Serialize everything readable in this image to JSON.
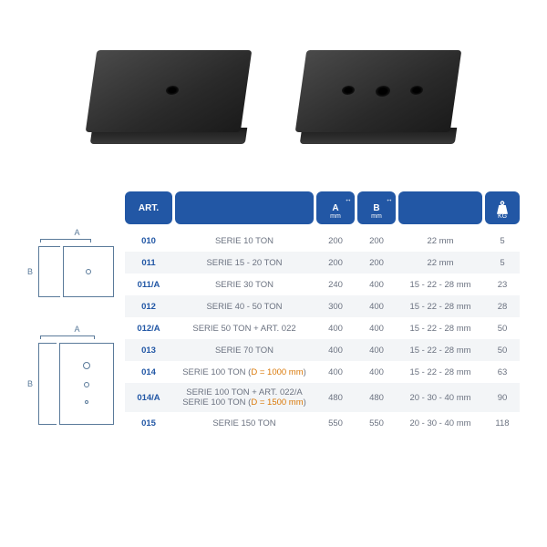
{
  "header": {
    "art": "ART.",
    "a": "A",
    "b": "B",
    "dim_unit": "mm",
    "kg": "KG"
  },
  "diagrams": {
    "label_a": "A",
    "label_b": "B"
  },
  "colors": {
    "header_bg": "#2257a5",
    "art_text": "#2257a5",
    "highlight": "#d97706",
    "body_text": "#6b7280",
    "row_alt": "#f3f5f7",
    "diagram_line": "#5a7a9a"
  },
  "rows": [
    {
      "art": "010",
      "desc": "SERIE 10 TON",
      "a": "200",
      "b": "200",
      "c": "22 mm",
      "kg": "5"
    },
    {
      "art": "011",
      "desc": "SERIE 15 - 20 TON",
      "a": "200",
      "b": "200",
      "c": "22 mm",
      "kg": "5"
    },
    {
      "art": "011/A",
      "desc": "SERIE 30 TON",
      "a": "240",
      "b": "400",
      "c": "15 - 22 - 28 mm",
      "kg": "23"
    },
    {
      "art": "012",
      "desc": "SERIE 40 - 50 TON",
      "a": "300",
      "b": "400",
      "c": "15 - 22 - 28 mm",
      "kg": "28"
    },
    {
      "art": "012/A",
      "desc": "SERIE 50 TON + ART. 022",
      "a": "400",
      "b": "400",
      "c": "15 - 22 - 28 mm",
      "kg": "50"
    },
    {
      "art": "013",
      "desc": "SERIE 70 TON",
      "a": "400",
      "b": "400",
      "c": "15 - 22 - 28 mm",
      "kg": "50"
    },
    {
      "art": "014",
      "desc_pre": "SERIE 100 TON (",
      "desc_hl": "D = 1000 mm",
      "desc_post": ")",
      "a": "400",
      "b": "400",
      "c": "15 - 22 - 28 mm",
      "kg": "63"
    },
    {
      "art": "014/A",
      "desc_line1": "SERIE 100 TON + ART. 022/A",
      "desc_line2_pre": "SERIE 100 TON (",
      "desc_line2_hl": "D = 1500 mm",
      "desc_line2_post": ")",
      "a": "480",
      "b": "480",
      "c": "20 - 30 - 40 mm",
      "kg": "90"
    },
    {
      "art": "015",
      "desc": "SERIE 150 TON",
      "a": "550",
      "b": "550",
      "c": "20 - 30 - 40 mm",
      "kg": "118"
    }
  ]
}
